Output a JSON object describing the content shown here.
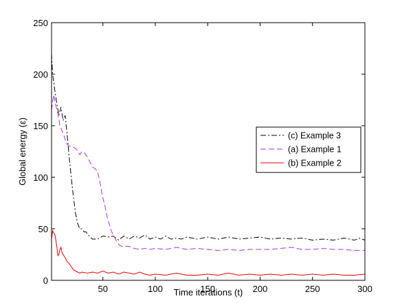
{
  "chart_data": {
    "type": "line",
    "title": "",
    "xlabel": "Time iterations (t)",
    "ylabel": "Global energy (ε)",
    "xlim": [
      1,
      300
    ],
    "ylim": [
      0,
      250
    ],
    "xticks": [
      50,
      100,
      150,
      200,
      250,
      300
    ],
    "yticks": [
      0,
      50,
      100,
      150,
      200,
      250
    ],
    "grid": false,
    "legend_position": "center-right",
    "series": [
      {
        "name": "(c) Example 3",
        "color": "#000000",
        "dash": "dashdot",
        "points": [
          [
            1,
            220
          ],
          [
            2,
            200
          ],
          [
            4,
            185
          ],
          [
            6,
            172
          ],
          [
            8,
            160
          ],
          [
            10,
            168
          ],
          [
            12,
            155
          ],
          [
            14,
            160
          ],
          [
            16,
            140
          ],
          [
            18,
            118
          ],
          [
            20,
            98
          ],
          [
            22,
            80
          ],
          [
            24,
            64
          ],
          [
            26,
            55
          ],
          [
            28,
            50
          ],
          [
            30,
            50
          ],
          [
            32,
            47
          ],
          [
            34,
            47
          ],
          [
            36,
            44
          ],
          [
            38,
            42
          ],
          [
            40,
            40
          ],
          [
            45,
            40
          ],
          [
            50,
            43
          ],
          [
            55,
            42
          ],
          [
            60,
            43
          ],
          [
            65,
            39
          ],
          [
            70,
            43
          ],
          [
            75,
            40
          ],
          [
            80,
            43
          ],
          [
            85,
            41
          ],
          [
            90,
            44
          ],
          [
            95,
            40
          ],
          [
            100,
            42
          ],
          [
            105,
            40
          ],
          [
            110,
            43
          ],
          [
            115,
            40
          ],
          [
            120,
            41
          ],
          [
            125,
            40
          ],
          [
            130,
            42
          ],
          [
            140,
            40
          ],
          [
            150,
            42
          ],
          [
            160,
            40
          ],
          [
            170,
            42
          ],
          [
            180,
            40
          ],
          [
            190,
            41
          ],
          [
            200,
            42
          ],
          [
            210,
            40
          ],
          [
            220,
            41
          ],
          [
            230,
            40
          ],
          [
            240,
            41
          ],
          [
            250,
            39
          ],
          [
            260,
            40
          ],
          [
            270,
            39
          ],
          [
            280,
            41
          ],
          [
            290,
            39
          ],
          [
            295,
            41
          ],
          [
            300,
            39
          ]
        ]
      },
      {
        "name": "(a) Example 1",
        "color": "#a833e6",
        "dash": "dashed",
        "points": [
          [
            1,
            165
          ],
          [
            3,
            180
          ],
          [
            5,
            170
          ],
          [
            7,
            162
          ],
          [
            9,
            150
          ],
          [
            11,
            145
          ],
          [
            13,
            140
          ],
          [
            15,
            133
          ],
          [
            18,
            130
          ],
          [
            20,
            130
          ],
          [
            24,
            128
          ],
          [
            28,
            122
          ],
          [
            30,
            125
          ],
          [
            33,
            123
          ],
          [
            36,
            118
          ],
          [
            40,
            110
          ],
          [
            43,
            108
          ],
          [
            45,
            105
          ],
          [
            47,
            96
          ],
          [
            49,
            85
          ],
          [
            50,
            80
          ],
          [
            52,
            72
          ],
          [
            54,
            62
          ],
          [
            56,
            55
          ],
          [
            58,
            48
          ],
          [
            60,
            44
          ],
          [
            62,
            40
          ],
          [
            64,
            36
          ],
          [
            66,
            34
          ],
          [
            68,
            33
          ],
          [
            70,
            33
          ],
          [
            75,
            33
          ],
          [
            80,
            31
          ],
          [
            85,
            30
          ],
          [
            90,
            31
          ],
          [
            95,
            30
          ],
          [
            100,
            31
          ],
          [
            110,
            30
          ],
          [
            120,
            32
          ],
          [
            130,
            30
          ],
          [
            140,
            31
          ],
          [
            150,
            30
          ],
          [
            160,
            29
          ],
          [
            170,
            30
          ],
          [
            180,
            29
          ],
          [
            190,
            30
          ],
          [
            200,
            30
          ],
          [
            210,
            30
          ],
          [
            220,
            31
          ],
          [
            230,
            32
          ],
          [
            240,
            30
          ],
          [
            250,
            30
          ],
          [
            260,
            31
          ],
          [
            270,
            30
          ],
          [
            280,
            30
          ],
          [
            290,
            29
          ],
          [
            300,
            29
          ]
        ]
      },
      {
        "name": "(b) Example 2",
        "color": "#e60000",
        "dash": "solid",
        "points": [
          [
            1,
            40
          ],
          [
            2,
            48
          ],
          [
            3,
            46
          ],
          [
            4,
            45
          ],
          [
            5,
            40
          ],
          [
            6,
            33
          ],
          [
            7,
            24
          ],
          [
            8,
            25
          ],
          [
            9,
            30
          ],
          [
            10,
            32
          ],
          [
            11,
            27
          ],
          [
            12,
            25
          ],
          [
            14,
            22
          ],
          [
            16,
            18
          ],
          [
            18,
            16
          ],
          [
            20,
            13
          ],
          [
            22,
            10
          ],
          [
            24,
            9
          ],
          [
            26,
            8
          ],
          [
            28,
            7
          ],
          [
            30,
            8
          ],
          [
            35,
            7
          ],
          [
            40,
            8
          ],
          [
            45,
            7
          ],
          [
            50,
            9
          ],
          [
            55,
            7
          ],
          [
            60,
            8
          ],
          [
            65,
            6
          ],
          [
            70,
            8
          ],
          [
            75,
            7
          ],
          [
            80,
            6
          ],
          [
            85,
            8
          ],
          [
            90,
            6
          ],
          [
            95,
            5
          ],
          [
            100,
            6
          ],
          [
            110,
            5
          ],
          [
            120,
            7
          ],
          [
            130,
            5
          ],
          [
            140,
            5
          ],
          [
            150,
            6
          ],
          [
            160,
            5
          ],
          [
            170,
            7
          ],
          [
            180,
            5
          ],
          [
            190,
            6
          ],
          [
            200,
            5
          ],
          [
            210,
            6
          ],
          [
            220,
            5
          ],
          [
            230,
            6
          ],
          [
            240,
            5
          ],
          [
            250,
            6
          ],
          [
            260,
            5
          ],
          [
            270,
            6
          ],
          [
            280,
            5
          ],
          [
            290,
            5
          ],
          [
            300,
            6
          ]
        ]
      }
    ]
  }
}
